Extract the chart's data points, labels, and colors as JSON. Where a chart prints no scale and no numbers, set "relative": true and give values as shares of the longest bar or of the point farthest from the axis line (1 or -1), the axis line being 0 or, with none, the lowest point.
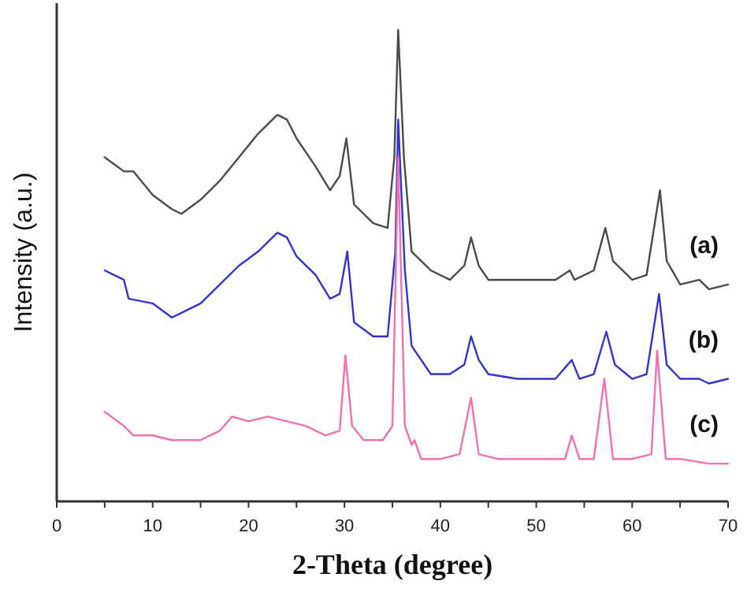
{
  "chart_data": {
    "type": "line",
    "relative": true,
    "xlabel": "2-Theta (degree)",
    "ylabel": "Intensity (a.u.)",
    "xlim": [
      0,
      70
    ],
    "xticks": [
      0,
      {
        "value": 5,
        "label": null
      },
      10,
      {
        "value": 15,
        "label": null
      },
      20,
      {
        "value": 25,
        "label": null
      },
      30,
      {
        "value": 35,
        "label": null
      },
      40,
      {
        "value": 45,
        "label": null
      },
      50,
      {
        "value": 55,
        "label": null
      },
      60,
      {
        "value": 65,
        "label": null
      },
      70
    ],
    "grid": false,
    "legend": false,
    "marker": "none",
    "line_style": "solid",
    "series": [
      {
        "name": "(a)",
        "color": "#4a4a4a",
        "x": [
          5,
          7,
          8,
          10,
          12,
          13,
          15,
          17,
          19,
          21,
          23,
          24,
          25,
          27,
          28.5,
          29.5,
          30.2,
          31,
          33,
          34.5,
          35.2,
          35.6,
          36.2,
          37,
          39,
          41,
          42.5,
          43.2,
          44,
          45,
          48,
          50,
          52,
          53.5,
          54,
          56,
          57.2,
          58,
          60,
          61.5,
          62.9,
          63.6,
          65,
          67,
          68,
          70
        ],
        "values": [
          0.73,
          0.7,
          0.7,
          0.65,
          0.62,
          0.61,
          0.64,
          0.68,
          0.73,
          0.78,
          0.82,
          0.81,
          0.77,
          0.71,
          0.66,
          0.69,
          0.77,
          0.63,
          0.59,
          0.58,
          0.73,
          1,
          0.73,
          0.53,
          0.49,
          0.47,
          0.5,
          0.56,
          0.5,
          0.47,
          0.47,
          0.47,
          0.47,
          0.49,
          0.47,
          0.49,
          0.58,
          0.51,
          0.47,
          0.48,
          0.66,
          0.51,
          0.46,
          0.47,
          0.45,
          0.46
        ]
      },
      {
        "name": "(b)",
        "color": "#3333cc",
        "x": [
          5,
          7,
          7.5,
          10,
          12,
          13,
          15,
          17,
          19,
          21,
          23,
          24,
          25,
          27,
          28.5,
          29.5,
          30.3,
          31,
          33,
          34.5,
          35.3,
          35.6,
          36.3,
          37,
          39,
          41,
          42.5,
          43.2,
          44,
          45,
          48,
          50,
          52,
          53.7,
          54.5,
          56,
          57.3,
          58.2,
          60,
          61.5,
          62.8,
          63.6,
          65,
          67,
          68,
          70
        ],
        "values": [
          0.49,
          0.47,
          0.43,
          0.42,
          0.39,
          0.4,
          0.42,
          0.46,
          0.5,
          0.53,
          0.57,
          0.56,
          0.52,
          0.48,
          0.43,
          0.44,
          0.53,
          0.38,
          0.35,
          0.35,
          0.53,
          0.81,
          0.49,
          0.33,
          0.27,
          0.27,
          0.29,
          0.35,
          0.3,
          0.27,
          0.26,
          0.26,
          0.26,
          0.3,
          0.26,
          0.27,
          0.36,
          0.29,
          0.26,
          0.27,
          0.44,
          0.29,
          0.26,
          0.26,
          0.25,
          0.26
        ]
      },
      {
        "name": "(c)",
        "color": "#f070b0",
        "x": [
          5,
          7,
          8,
          10,
          12,
          15,
          17,
          18.3,
          20,
          22,
          24,
          26,
          28,
          29.5,
          30.1,
          30.8,
          32,
          34,
          35,
          35.6,
          36.3,
          37,
          37.3,
          38,
          40,
          42,
          43.2,
          44,
          46,
          50,
          53,
          53.7,
          54.5,
          56,
          57.1,
          58,
          60,
          62,
          62.6,
          63.5,
          65,
          68,
          70
        ],
        "values": [
          0.19,
          0.16,
          0.14,
          0.14,
          0.13,
          0.13,
          0.15,
          0.18,
          0.17,
          0.18,
          0.17,
          0.16,
          0.14,
          0.15,
          0.31,
          0.16,
          0.13,
          0.13,
          0.16,
          0.73,
          0.16,
          0.12,
          0.13,
          0.09,
          0.09,
          0.1,
          0.22,
          0.1,
          0.09,
          0.09,
          0.09,
          0.14,
          0.09,
          0.09,
          0.26,
          0.09,
          0.09,
          0.1,
          0.32,
          0.09,
          0.09,
          0.08,
          0.08
        ]
      }
    ]
  }
}
